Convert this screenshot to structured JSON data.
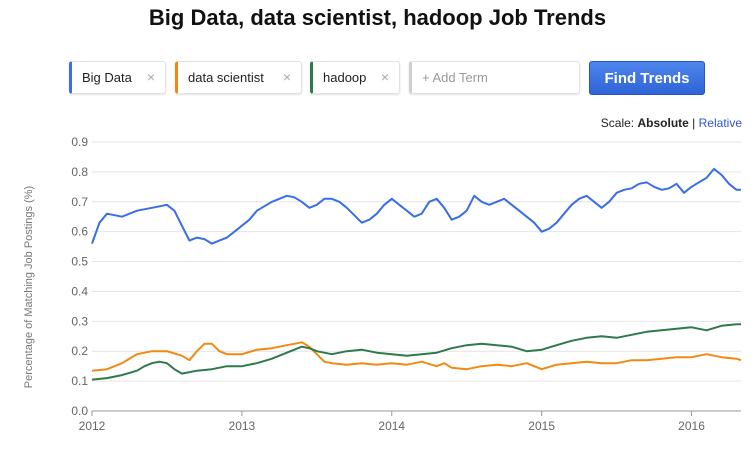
{
  "header": {
    "title": "Big Data, data scientist, hadoop Job Trends"
  },
  "terms": [
    {
      "label": "Big Data",
      "color": "#3a6ee8"
    },
    {
      "label": "data scientist",
      "color": "#f08a13"
    },
    {
      "label": "hadoop",
      "color": "#2e7a4b"
    }
  ],
  "remove_symbol": "×",
  "add_term_placeholder": "+ Add Term",
  "find_button": "Find Trends",
  "scale": {
    "label": "Scale:",
    "absolute": "Absolute",
    "separator": "|",
    "relative": "Relative"
  },
  "chart_data": {
    "type": "line",
    "ylabel": "Percentage of Matching Job Postings (%)",
    "xlabel": "",
    "xlim": [
      2012,
      2016.33
    ],
    "ylim": [
      0,
      0.9
    ],
    "y_ticks": [
      "0.0",
      "0.1",
      "0.2",
      "0.3",
      "0.4",
      "0.5",
      "0.6",
      "0.7",
      "0.8",
      "0.9"
    ],
    "x_ticks": [
      2012,
      2013,
      2014,
      2015,
      2016
    ],
    "grid": true,
    "series": [
      {
        "name": "Big Data",
        "color": "#3a6ee8",
        "x": [
          2012.0,
          2012.05,
          2012.1,
          2012.2,
          2012.3,
          2012.4,
          2012.5,
          2012.55,
          2012.6,
          2012.65,
          2012.7,
          2012.75,
          2012.8,
          2012.85,
          2012.9,
          2012.95,
          2013.0,
          2013.05,
          2013.1,
          2013.2,
          2013.25,
          2013.3,
          2013.35,
          2013.4,
          2013.45,
          2013.5,
          2013.55,
          2013.6,
          2013.65,
          2013.7,
          2013.8,
          2013.85,
          2013.9,
          2013.95,
          2014.0,
          2014.05,
          2014.1,
          2014.15,
          2014.2,
          2014.25,
          2014.3,
          2014.35,
          2014.4,
          2014.45,
          2014.5,
          2014.55,
          2014.6,
          2014.65,
          2014.7,
          2014.75,
          2014.8,
          2014.85,
          2014.9,
          2014.95,
          2015.0,
          2015.05,
          2015.1,
          2015.15,
          2015.2,
          2015.25,
          2015.3,
          2015.35,
          2015.4,
          2015.45,
          2015.5,
          2015.55,
          2015.6,
          2015.65,
          2015.7,
          2015.75,
          2015.8,
          2015.85,
          2015.9,
          2015.95,
          2016.0,
          2016.05,
          2016.1,
          2016.15,
          2016.2,
          2016.25,
          2016.3,
          2016.33
        ],
        "values": [
          0.56,
          0.63,
          0.66,
          0.65,
          0.67,
          0.68,
          0.69,
          0.67,
          0.62,
          0.57,
          0.58,
          0.575,
          0.56,
          0.57,
          0.58,
          0.6,
          0.62,
          0.64,
          0.67,
          0.7,
          0.71,
          0.72,
          0.715,
          0.7,
          0.68,
          0.69,
          0.71,
          0.71,
          0.7,
          0.68,
          0.63,
          0.64,
          0.66,
          0.69,
          0.71,
          0.69,
          0.67,
          0.65,
          0.66,
          0.7,
          0.71,
          0.68,
          0.64,
          0.65,
          0.67,
          0.72,
          0.7,
          0.69,
          0.7,
          0.71,
          0.69,
          0.67,
          0.65,
          0.63,
          0.6,
          0.61,
          0.63,
          0.66,
          0.69,
          0.71,
          0.72,
          0.7,
          0.68,
          0.7,
          0.73,
          0.74,
          0.745,
          0.76,
          0.765,
          0.75,
          0.74,
          0.745,
          0.76,
          0.73,
          0.75,
          0.765,
          0.78,
          0.81,
          0.79,
          0.76,
          0.74,
          0.74
        ]
      },
      {
        "name": "data scientist",
        "color": "#f08a13",
        "x": [
          2012.0,
          2012.1,
          2012.2,
          2012.3,
          2012.4,
          2012.5,
          2012.6,
          2012.65,
          2012.7,
          2012.75,
          2012.8,
          2012.85,
          2012.9,
          2013.0,
          2013.1,
          2013.2,
          2013.3,
          2013.35,
          2013.4,
          2013.45,
          2013.5,
          2013.55,
          2013.6,
          2013.7,
          2013.8,
          2013.9,
          2014.0,
          2014.1,
          2014.2,
          2014.3,
          2014.35,
          2014.4,
          2014.5,
          2014.6,
          2014.7,
          2014.8,
          2014.9,
          2015.0,
          2015.1,
          2015.2,
          2015.3,
          2015.4,
          2015.5,
          2015.6,
          2015.7,
          2015.8,
          2015.9,
          2016.0,
          2016.1,
          2016.2,
          2016.3,
          2016.33
        ],
        "values": [
          0.135,
          0.14,
          0.16,
          0.19,
          0.2,
          0.2,
          0.185,
          0.17,
          0.2,
          0.225,
          0.225,
          0.2,
          0.19,
          0.19,
          0.205,
          0.21,
          0.22,
          0.225,
          0.23,
          0.215,
          0.19,
          0.165,
          0.16,
          0.155,
          0.16,
          0.155,
          0.16,
          0.155,
          0.165,
          0.15,
          0.16,
          0.145,
          0.14,
          0.15,
          0.155,
          0.15,
          0.16,
          0.14,
          0.155,
          0.16,
          0.165,
          0.16,
          0.16,
          0.17,
          0.17,
          0.175,
          0.18,
          0.18,
          0.19,
          0.18,
          0.175,
          0.17
        ]
      },
      {
        "name": "hadoop",
        "color": "#2e7a4b",
        "x": [
          2012.0,
          2012.1,
          2012.2,
          2012.3,
          2012.35,
          2012.4,
          2012.45,
          2012.5,
          2012.55,
          2012.6,
          2012.7,
          2012.8,
          2012.9,
          2013.0,
          2013.1,
          2013.2,
          2013.3,
          2013.35,
          2013.4,
          2013.45,
          2013.5,
          2013.55,
          2013.6,
          2013.7,
          2013.8,
          2013.9,
          2014.0,
          2014.1,
          2014.2,
          2014.3,
          2014.4,
          2014.5,
          2014.6,
          2014.7,
          2014.8,
          2014.9,
          2015.0,
          2015.1,
          2015.2,
          2015.3,
          2015.4,
          2015.5,
          2015.6,
          2015.7,
          2015.8,
          2015.9,
          2016.0,
          2016.1,
          2016.2,
          2016.3,
          2016.33
        ],
        "values": [
          0.105,
          0.11,
          0.12,
          0.135,
          0.15,
          0.16,
          0.165,
          0.16,
          0.14,
          0.125,
          0.135,
          0.14,
          0.15,
          0.15,
          0.16,
          0.175,
          0.195,
          0.205,
          0.215,
          0.21,
          0.2,
          0.195,
          0.19,
          0.2,
          0.205,
          0.195,
          0.19,
          0.185,
          0.19,
          0.195,
          0.21,
          0.22,
          0.225,
          0.22,
          0.215,
          0.2,
          0.205,
          0.22,
          0.235,
          0.245,
          0.25,
          0.245,
          0.255,
          0.265,
          0.27,
          0.275,
          0.28,
          0.27,
          0.285,
          0.29,
          0.29
        ]
      }
    ]
  }
}
